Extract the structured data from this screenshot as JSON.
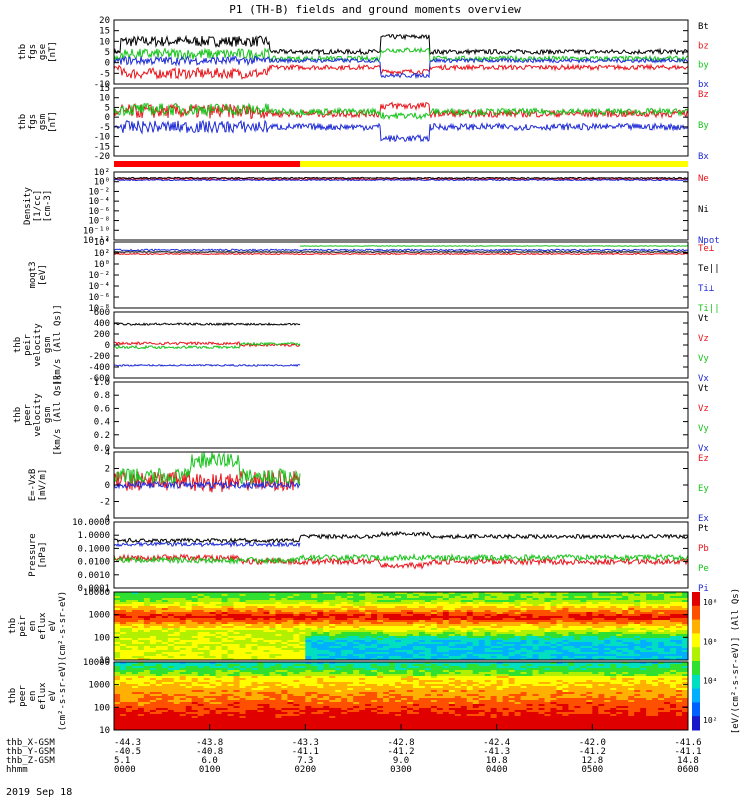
{
  "chart_data": {
    "type": "line",
    "title": "P1 (TH-B) fields and ground moments overview",
    "date": "2019 Sep 18",
    "x": {
      "unit": "hhmm",
      "ticks": [
        "0000",
        "0100",
        "0200",
        "0300",
        "0400",
        "0500",
        "0600"
      ],
      "ephemeris": [
        {
          "label": "thb_X-GSM",
          "values": [
            "-44.3",
            "-43.8",
            "-43.3",
            "-42.8",
            "-42.4",
            "-42.0",
            "-41.6"
          ]
        },
        {
          "label": "thb_Y-GSM",
          "values": [
            "-40.5",
            "-40.8",
            "-41.1",
            "-41.2",
            "-41.3",
            "-41.2",
            "-41.1"
          ]
        },
        {
          "label": "thb_Z-GSM",
          "values": [
            "5.1",
            "6.0",
            "7.3",
            "9.0",
            "10.8",
            "12.8",
            "14.8"
          ]
        },
        {
          "label": "hhmm",
          "values": [
            "0000",
            "0100",
            "0200",
            "0300",
            "0400",
            "0500",
            "0600"
          ]
        }
      ]
    },
    "panels": [
      {
        "ylabel": [
          "thb",
          "fgs",
          "gse",
          "[nT]"
        ],
        "ylim": [
          -10,
          20
        ],
        "scale": "linear",
        "ticks": [
          "20",
          "15",
          "10",
          "5",
          "0",
          "-5",
          "-10"
        ],
        "series": [
          {
            "name": "Bt",
            "color": "#000000"
          },
          {
            "name": "bz",
            "color": "#e8141b"
          },
          {
            "name": "by",
            "color": "#18c41c"
          },
          {
            "name": "bx",
            "color": "#1f2bd6"
          }
        ]
      },
      {
        "ylabel": [
          "thb",
          "fgs",
          "gsm",
          "[nT]"
        ],
        "ylim": [
          -20,
          15
        ],
        "scale": "linear",
        "ticks": [
          "15",
          "10",
          "5",
          "0",
          "-5",
          "-10",
          "-15",
          "-20"
        ],
        "series": [
          {
            "name": "Bz",
            "color": "#e8141b"
          },
          {
            "name": "By",
            "color": "#18c41c"
          },
          {
            "name": "Bx",
            "color": "#1f2bd6"
          }
        ]
      },
      {
        "ylabel": [
          "Density",
          "[1/cc]",
          "[cm-3]"
        ],
        "scale": "log",
        "ticks": [
          "10²",
          "10⁰",
          "10⁻²",
          "10⁻⁴",
          "10⁻⁶",
          "10⁻⁸",
          "10⁻¹⁰",
          "10⁻¹²"
        ],
        "series": [
          {
            "name": "Ne",
            "color": "#e8141b"
          },
          {
            "name": "Ni",
            "color": "#000000"
          },
          {
            "name": "Npot",
            "color": "#1f2bd6"
          }
        ]
      },
      {
        "ylabel": [
          "moqt3",
          "[eV]"
        ],
        "scale": "log",
        "ticks": [
          "10⁴",
          "10²",
          "10⁰",
          "10⁻²",
          "10⁻⁴",
          "10⁻⁶",
          "10⁻⁸"
        ],
        "series": [
          {
            "name": "Te⊥",
            "color": "#e8141b"
          },
          {
            "name": "Te||",
            "color": "#000000"
          },
          {
            "name": "Ti⊥",
            "color": "#1f2bd6"
          },
          {
            "name": "Ti||",
            "color": "#18c41c"
          }
        ]
      },
      {
        "ylabel": [
          "thb",
          "peir",
          "velocity",
          "gsm",
          "[km/s (All Qs)]"
        ],
        "ylim": [
          -600,
          600
        ],
        "scale": "linear",
        "ticks": [
          "600",
          "400",
          "200",
          "0",
          "-200",
          "-400",
          "-600"
        ],
        "series": [
          {
            "name": "Vt",
            "color": "#000000"
          },
          {
            "name": "Vz",
            "color": "#e8141b"
          },
          {
            "name": "Vy",
            "color": "#18c41c"
          },
          {
            "name": "Vx",
            "color": "#1f2bd6"
          }
        ]
      },
      {
        "ylabel": [
          "thb",
          "peer",
          "velocity",
          "gsm",
          "[km/s (All Qs)]"
        ],
        "ylim": [
          0,
          1
        ],
        "scale": "linear",
        "ticks": [
          "1.0",
          "0.8",
          "0.6",
          "0.4",
          "0.2",
          "0.0"
        ],
        "series": [
          {
            "name": "Vt",
            "color": "#000000"
          },
          {
            "name": "Vz",
            "color": "#e8141b"
          },
          {
            "name": "Vy",
            "color": "#18c41c"
          },
          {
            "name": "Vx",
            "color": "#1f2bd6"
          }
        ]
      },
      {
        "ylabel": [
          "E=-VxB",
          "[mV/m]"
        ],
        "ylim": [
          -4,
          4
        ],
        "scale": "linear",
        "ticks": [
          "4",
          "2",
          "0",
          "-2",
          "-4"
        ],
        "series": [
          {
            "name": "Ez",
            "color": "#e8141b"
          },
          {
            "name": "Ey",
            "color": "#18c41c"
          },
          {
            "name": "Ex",
            "color": "#1f2bd6"
          }
        ]
      },
      {
        "ylabel": [
          "Pressure",
          "[nPa]"
        ],
        "scale": "log",
        "ticks": [
          "10.0000",
          "1.0000",
          "0.1000",
          "0.0100",
          "0.0010",
          "0.0001"
        ],
        "series": [
          {
            "name": "Pt",
            "color": "#000000"
          },
          {
            "name": "Pb",
            "color": "#e8141b"
          },
          {
            "name": "Pe",
            "color": "#18c41c"
          },
          {
            "name": "Pi",
            "color": "#1f2bd6"
          }
        ]
      },
      {
        "ylabel": [
          "thb",
          "peir",
          "en",
          "eflux",
          "eV",
          "(cm²-s-sr-eV)"
        ],
        "scale": "log",
        "ticks": [
          "10000",
          "1000",
          "100",
          "10"
        ],
        "kind": "spectrogram"
      },
      {
        "ylabel": [
          "thb",
          "peer",
          "en",
          "eflux",
          "eV",
          "(cm²-s-sr-eV)"
        ],
        "scale": "log",
        "ticks": [
          "10000",
          "1000",
          "100",
          "10"
        ],
        "kind": "spectrogram"
      }
    ],
    "colorbar": {
      "label": "[eV/(cm²-s-sr-eV)] (All Qs)",
      "ticks": [
        "10⁸",
        "10⁶",
        "10⁴",
        "10²"
      ]
    },
    "mode_bar": {
      "segments": [
        "red",
        "yellow"
      ]
    }
  }
}
